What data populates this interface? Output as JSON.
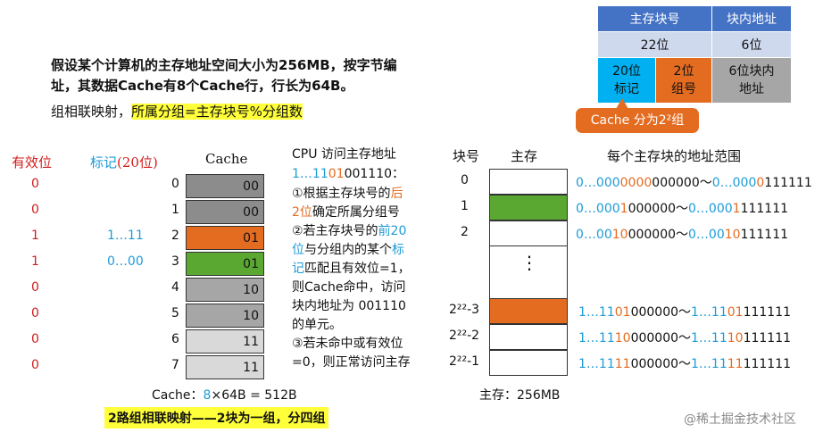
{
  "address_format": {
    "header": [
      "主存块号",
      "块内地址"
    ],
    "bits_row": [
      "22位",
      "6位"
    ],
    "detail_row": [
      "20位\n标记",
      "2位\n组号",
      "6位块内\n地址"
    ],
    "colors": {
      "header": "#4472c4",
      "light": "#cfd9ee",
      "cyan": "#00b0f0",
      "orange": "#e46c21",
      "gray": "#a6a6a6"
    }
  },
  "callout": {
    "text": "Cache 分为2²组",
    "color": "#e46c21"
  },
  "problem": {
    "line1": "假设某个计算机的主存地址空间大小为256MB，按字节编",
    "line2": "址，其数据Cache有8个Cache行，行长为64B。"
  },
  "mapping": {
    "prefix": "组相联映射，",
    "highlight": "所属分组=主存块号%分组数"
  },
  "headers": {
    "valid": "有效位",
    "tag": "标记",
    "tag_bits": "(20位)",
    "cache": "Cache",
    "block_no": "块号",
    "memory": "主存",
    "ranges": "每个主存块的地址范围"
  },
  "cache_rows": [
    {
      "index": "0",
      "valid": "0",
      "tag": "",
      "content": "00",
      "color": "#8c8c8c"
    },
    {
      "index": "1",
      "valid": "0",
      "tag": "",
      "content": "00",
      "color": "#8c8c8c"
    },
    {
      "index": "2",
      "valid": "1",
      "tag": "1…11",
      "content": "01",
      "color": "#e46c21"
    },
    {
      "index": "3",
      "valid": "1",
      "tag": "0…00",
      "content": "01",
      "color": "#5aa832"
    },
    {
      "index": "4",
      "valid": "0",
      "tag": "",
      "content": "10",
      "color": "#a6a6a6"
    },
    {
      "index": "5",
      "valid": "0",
      "tag": "",
      "content": "10",
      "color": "#a6a6a6"
    },
    {
      "index": "6",
      "valid": "0",
      "tag": "",
      "content": "11",
      "color": "#d9d9d9"
    },
    {
      "index": "7",
      "valid": "0",
      "tag": "",
      "content": "11",
      "color": "#d9d9d9"
    }
  ],
  "cache_size": {
    "prefix": "Cache：",
    "count": "8",
    "rest": "×64B = 512B"
  },
  "footer": "2路组相联映射——2块为一组，分四组",
  "cpu": {
    "title": "CPU 访问主存地址",
    "address": {
      "p1": "1…11",
      "p2": "01",
      "p3": "001110",
      "p4": "："
    },
    "lines": [
      [
        {
          "t": "①根据主存块号的"
        },
        {
          "t": "后",
          "c": "orange"
        }
      ],
      [
        {
          "t": "2位",
          "c": "orange"
        },
        {
          "t": "确定所属分组号"
        }
      ],
      [
        {
          "t": "②若主存块号的"
        },
        {
          "t": "前20",
          "c": "blue"
        }
      ],
      [
        {
          "t": "位",
          "c": "blue"
        },
        {
          "t": "与分组内的某个"
        },
        {
          "t": "标",
          "c": "blue"
        }
      ],
      [
        {
          "t": "记",
          "c": "blue"
        },
        {
          "t": "匹配且有效位=1，"
        }
      ],
      [
        {
          "t": "则Cache命中，访问"
        }
      ],
      [
        {
          "t": "块内地址为 001110"
        }
      ],
      [
        {
          "t": "的单元。"
        }
      ],
      [
        {
          "t": "③若未命中或有效位"
        }
      ],
      [
        {
          "t": "=0，则正常访问主存"
        }
      ]
    ]
  },
  "memory_blocks": [
    {
      "label": "0",
      "color": "#ffffff",
      "range_start": [
        "0…000",
        "0000",
        "000000"
      ],
      "range_end": [
        "0…000",
        "0",
        "111111"
      ]
    },
    {
      "label": "1",
      "color": "#5aa832",
      "range_start": [
        "0…000",
        "1",
        "000000"
      ],
      "range_end": [
        "0…000",
        "1",
        "111111"
      ]
    },
    {
      "label": "2",
      "color": "#ffffff",
      "range_start": [
        "0…00",
        "10",
        "000000"
      ],
      "range_end": [
        "0…00",
        "10",
        "111111"
      ]
    },
    {
      "label": "2²²-3",
      "color": "#e46c21",
      "range_start": [
        "1…11",
        "01",
        "000000"
      ],
      "range_end": [
        "1…11",
        "01",
        "111111"
      ]
    },
    {
      "label": "2²²-2",
      "color": "#ffffff",
      "range_start": [
        "1…11",
        "10",
        "000000"
      ],
      "range_end": [
        "1…11",
        "10",
        "111111"
      ]
    },
    {
      "label": "2²²-1",
      "color": "#ffffff",
      "range_start": [
        "1…11",
        "11",
        "000000"
      ],
      "range_end": [
        "1…11",
        "11",
        "111111"
      ]
    }
  ],
  "range_separator": "～",
  "ellipsis": "⋮",
  "memory_size": "主存：256MB",
  "watermark": "@稀土掘金技术社区"
}
